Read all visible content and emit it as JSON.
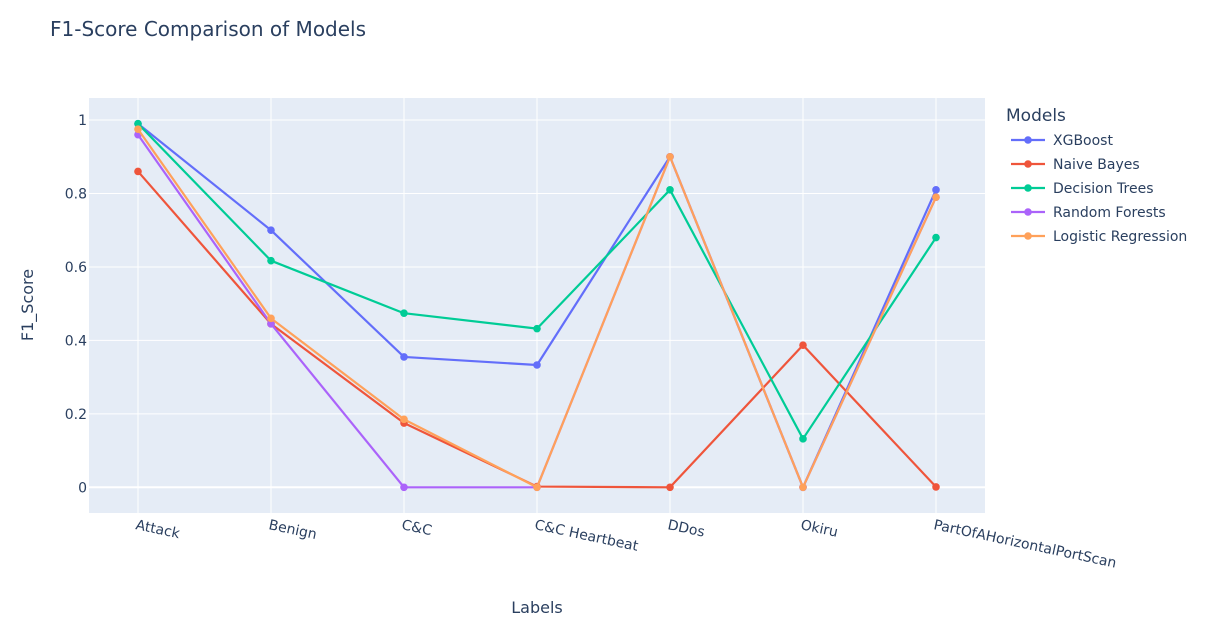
{
  "chart_data": {
    "type": "line",
    "title": "F1-Score Comparison of Models",
    "xlabel": "Labels",
    "ylabel": "F1_Score",
    "categories": [
      "Attack",
      "Benign",
      "C&C",
      "C&C Heartbeat",
      "DDos",
      "Okiru",
      "PartOfAHorizontalPortScan"
    ],
    "ylim": [
      -0.07,
      1.06
    ],
    "yticks": [
      0,
      0.2,
      0.4,
      0.6,
      0.8,
      1
    ],
    "ytick_labels": [
      "0",
      "0.2",
      "0.4",
      "0.6",
      "0.8",
      "1"
    ],
    "grid": true,
    "legend_title": "Models",
    "legend_position": "right",
    "series": [
      {
        "name": "XGBoost",
        "color": "#636efa",
        "values": [
          0.99,
          0.7,
          0.355,
          0.333,
          0.9,
          0.0,
          0.81
        ]
      },
      {
        "name": "Naive Bayes",
        "color": "#ef553b",
        "values": [
          0.86,
          0.445,
          0.175,
          0.002,
          0.0,
          0.387,
          0.001
        ]
      },
      {
        "name": "Decision Trees",
        "color": "#00cc96",
        "values": [
          0.99,
          0.617,
          0.474,
          0.432,
          0.81,
          0.132,
          0.68
        ]
      },
      {
        "name": "Random Forests",
        "color": "#ab63fa",
        "values": [
          0.96,
          0.445,
          0.0,
          0.0,
          0.9,
          0.0,
          0.79
        ]
      },
      {
        "name": "Logistic Regression",
        "color": "#ffa15a",
        "values": [
          0.975,
          0.46,
          0.185,
          0.0,
          0.9,
          0.0,
          0.79
        ]
      }
    ]
  }
}
